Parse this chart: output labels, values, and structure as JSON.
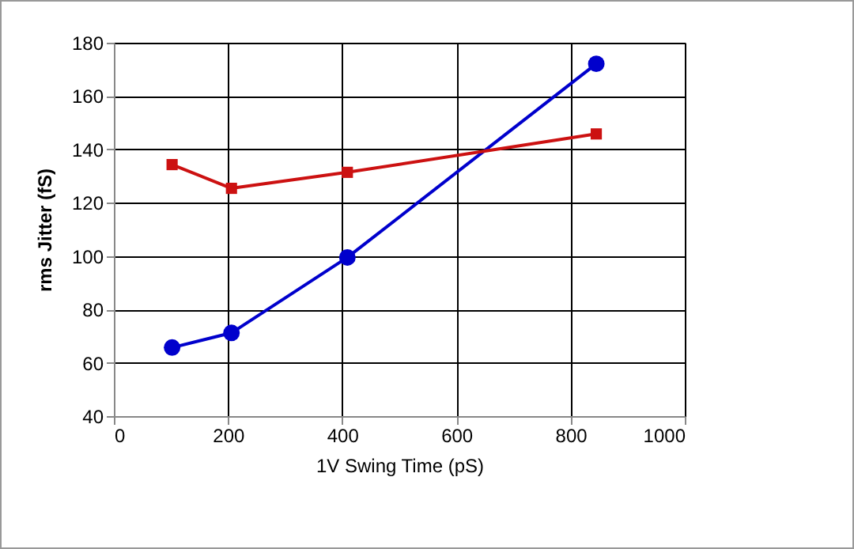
{
  "chart_data": {
    "type": "line",
    "xlabel": "1V Swing Time (pS)",
    "ylabel": "rms Jitter (fS)",
    "x": [
      102,
      206,
      409,
      845
    ],
    "series": [
      {
        "color": "#0000cc",
        "marker": "circle",
        "values": [
          65.7,
          71.2,
          99.5,
          172.1
        ]
      },
      {
        "color": "#cc1111",
        "marker": "square",
        "values": [
          134.3,
          125.4,
          131.4,
          145.8
        ]
      }
    ],
    "xlim": [
      0,
      1000
    ],
    "xticks": [
      0,
      200,
      400,
      600,
      800,
      1000
    ],
    "ylim": [
      40,
      180
    ],
    "yticks": [
      40,
      60,
      80,
      100,
      120,
      140,
      160,
      180
    ],
    "grid": true
  }
}
